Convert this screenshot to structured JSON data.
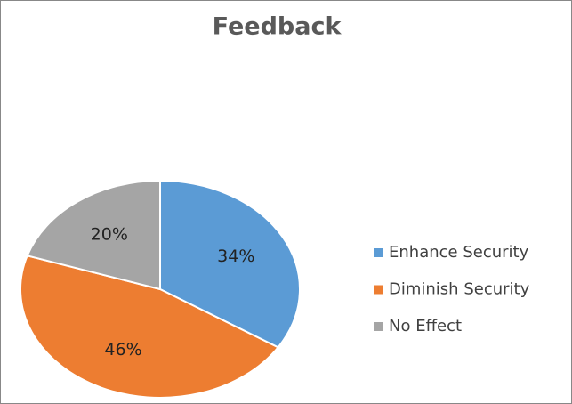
{
  "chart_data": {
    "type": "pie",
    "title": "Feedback",
    "categories": [
      "Enhance Security",
      "Diminish Security",
      "No Effect"
    ],
    "values": [
      34,
      46,
      20
    ],
    "value_labels": [
      "34%",
      "46%",
      "20%"
    ],
    "colors": [
      "#5b9bd5",
      "#ed7d31",
      "#a5a5a5"
    ],
    "legend": "right"
  }
}
